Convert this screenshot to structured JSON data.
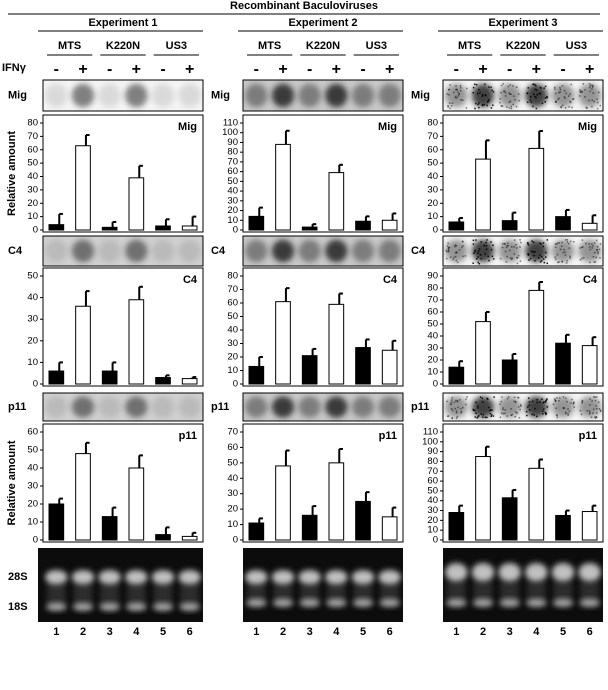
{
  "figure": {
    "title": "Recombinant Baculoviruses",
    "experiments": [
      "Experiment 1",
      "Experiment 2",
      "Experiment 3"
    ],
    "groups": [
      "MTS",
      "K220N",
      "US3"
    ],
    "treatment_label": "IFNγ",
    "treatments": [
      "-",
      "+",
      "-",
      "+",
      "-",
      "+"
    ],
    "blots": [
      "Mig",
      "C4",
      "p11"
    ],
    "gel_labels": [
      "28S",
      "18S"
    ],
    "lanes": [
      1,
      2,
      3,
      4,
      5,
      6
    ]
  },
  "chart_data": [
    {
      "type": "bar",
      "title": "Mig",
      "ylabel": "Relative amount",
      "values": [
        4,
        63,
        2,
        39,
        3,
        3
      ],
      "errors": [
        8,
        8,
        4,
        9,
        5,
        7
      ],
      "colors": [
        "#000000",
        "#ffffff",
        "#000000",
        "#ffffff",
        "#000000",
        "#ffffff"
      ],
      "ylim": [
        0,
        80
      ],
      "yticks": [
        0,
        10,
        20,
        30,
        40,
        50,
        60,
        70,
        80
      ]
    },
    {
      "type": "bar",
      "title": "C4",
      "values": [
        6,
        36,
        6,
        39,
        3,
        2.5
      ],
      "errors": [
        4,
        7,
        4,
        6,
        1,
        0.7
      ],
      "colors": [
        "#000000",
        "#ffffff",
        "#000000",
        "#ffffff",
        "#000000",
        "#ffffff"
      ],
      "ylim": [
        0,
        50
      ],
      "yticks": [
        0,
        10,
        20,
        30,
        40,
        50
      ]
    },
    {
      "type": "bar",
      "title": "p11",
      "ylabel": "Relative amount",
      "values": [
        20,
        48,
        13,
        40,
        3,
        2
      ],
      "errors": [
        3,
        6,
        5,
        7,
        4,
        2
      ],
      "colors": [
        "#000000",
        "#ffffff",
        "#000000",
        "#ffffff",
        "#000000",
        "#ffffff"
      ],
      "ylim": [
        0,
        60
      ],
      "yticks": [
        0,
        10,
        20,
        30,
        40,
        50,
        60
      ]
    },
    {
      "type": "bar",
      "title": "Mig",
      "values": [
        14,
        88,
        3,
        59,
        9,
        10
      ],
      "errors": [
        9,
        14,
        3,
        8,
        5,
        7
      ],
      "colors": [
        "#000000",
        "#ffffff",
        "#000000",
        "#ffffff",
        "#000000",
        "#ffffff"
      ],
      "ylim": [
        0,
        110
      ],
      "yticks": [
        0,
        10,
        20,
        30,
        40,
        50,
        60,
        70,
        80,
        90,
        100,
        110
      ]
    },
    {
      "type": "bar",
      "title": "C4",
      "values": [
        13,
        61,
        21,
        59,
        27,
        25
      ],
      "errors": [
        7,
        10,
        5,
        8,
        6,
        7
      ],
      "colors": [
        "#000000",
        "#ffffff",
        "#000000",
        "#ffffff",
        "#000000",
        "#ffffff"
      ],
      "ylim": [
        0,
        80
      ],
      "yticks": [
        0,
        10,
        20,
        30,
        40,
        50,
        60,
        70,
        80
      ]
    },
    {
      "type": "bar",
      "title": "p11",
      "values": [
        11,
        48,
        16,
        50,
        25,
        15
      ],
      "errors": [
        3,
        10,
        6,
        9,
        6,
        6
      ],
      "colors": [
        "#000000",
        "#ffffff",
        "#000000",
        "#ffffff",
        "#000000",
        "#ffffff"
      ],
      "ylim": [
        0,
        70
      ],
      "yticks": [
        0,
        10,
        20,
        30,
        40,
        50,
        60,
        70
      ]
    },
    {
      "type": "bar",
      "title": "Mig",
      "values": [
        6,
        53,
        7,
        61,
        10,
        5
      ],
      "errors": [
        3,
        14,
        6,
        13,
        5,
        6
      ],
      "colors": [
        "#000000",
        "#ffffff",
        "#000000",
        "#ffffff",
        "#000000",
        "#ffffff"
      ],
      "ylim": [
        0,
        80
      ],
      "yticks": [
        0,
        10,
        20,
        30,
        40,
        50,
        60,
        70,
        80
      ]
    },
    {
      "type": "bar",
      "title": "C4",
      "values": [
        14,
        52,
        20,
        78,
        34,
        32
      ],
      "errors": [
        5,
        8,
        5,
        7,
        7,
        7
      ],
      "colors": [
        "#000000",
        "#ffffff",
        "#000000",
        "#ffffff",
        "#000000",
        "#ffffff"
      ],
      "ylim": [
        0,
        90
      ],
      "yticks": [
        0,
        10,
        20,
        30,
        40,
        50,
        60,
        70,
        80,
        90
      ]
    },
    {
      "type": "bar",
      "title": "p11",
      "values": [
        28,
        85,
        43,
        73,
        25,
        29
      ],
      "errors": [
        7,
        10,
        8,
        9,
        5,
        6
      ],
      "colors": [
        "#000000",
        "#ffffff",
        "#000000",
        "#ffffff",
        "#000000",
        "#ffffff"
      ],
      "ylim": [
        0,
        110
      ],
      "yticks": [
        0,
        10,
        20,
        30,
        40,
        50,
        60,
        70,
        80,
        90,
        100,
        110
      ]
    }
  ]
}
